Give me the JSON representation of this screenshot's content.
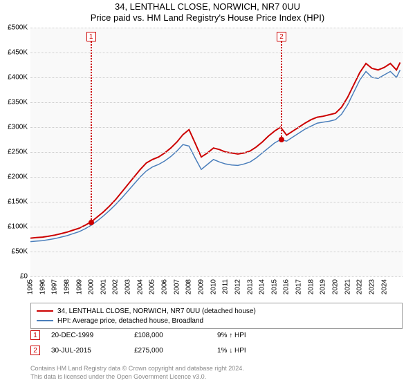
{
  "titles": {
    "main": "34, LENTHALL CLOSE, NORWICH, NR7 0UU",
    "sub": "Price paid vs. HM Land Registry's House Price Index (HPI)"
  },
  "chart": {
    "type": "line",
    "background_color": "#f9f9f9",
    "grid_color": "#cccccc",
    "ylim": [
      0,
      500000
    ],
    "ytick_step": 50000,
    "y_tick_labels": [
      "£0",
      "£50K",
      "£100K",
      "£150K",
      "£200K",
      "£250K",
      "£300K",
      "£350K",
      "£400K",
      "£450K",
      "£500K"
    ],
    "x_years": [
      1995,
      1996,
      1997,
      1998,
      1999,
      2000,
      2001,
      2002,
      2003,
      2004,
      2005,
      2006,
      2007,
      2008,
      2009,
      2010,
      2011,
      2012,
      2013,
      2014,
      2015,
      2016,
      2017,
      2018,
      2019,
      2020,
      2021,
      2022,
      2023,
      2024
    ],
    "series": [
      {
        "name": "34, LENTHALL CLOSE, NORWICH, NR7 0UU (detached house)",
        "color": "#cc0000",
        "line_width": 2,
        "points": [
          [
            1995.0,
            77000
          ],
          [
            1995.5,
            78000
          ],
          [
            1996.0,
            79000
          ],
          [
            1996.5,
            81000
          ],
          [
            1997.0,
            83000
          ],
          [
            1997.5,
            86000
          ],
          [
            1998.0,
            89000
          ],
          [
            1998.5,
            93000
          ],
          [
            1999.0,
            97000
          ],
          [
            1999.5,
            103000
          ],
          [
            2000.0,
            110000
          ],
          [
            2000.5,
            120000
          ],
          [
            2001.0,
            130000
          ],
          [
            2001.5,
            142000
          ],
          [
            2002.0,
            155000
          ],
          [
            2002.5,
            170000
          ],
          [
            2003.0,
            185000
          ],
          [
            2003.5,
            200000
          ],
          [
            2004.0,
            215000
          ],
          [
            2004.5,
            228000
          ],
          [
            2005.0,
            235000
          ],
          [
            2005.5,
            240000
          ],
          [
            2006.0,
            248000
          ],
          [
            2006.5,
            258000
          ],
          [
            2007.0,
            270000
          ],
          [
            2007.5,
            285000
          ],
          [
            2008.0,
            295000
          ],
          [
            2008.5,
            268000
          ],
          [
            2009.0,
            240000
          ],
          [
            2009.5,
            248000
          ],
          [
            2010.0,
            258000
          ],
          [
            2010.5,
            255000
          ],
          [
            2011.0,
            250000
          ],
          [
            2011.5,
            248000
          ],
          [
            2012.0,
            246000
          ],
          [
            2012.5,
            248000
          ],
          [
            2013.0,
            252000
          ],
          [
            2013.5,
            260000
          ],
          [
            2014.0,
            270000
          ],
          [
            2014.5,
            282000
          ],
          [
            2015.0,
            292000
          ],
          [
            2015.5,
            300000
          ],
          [
            2016.0,
            284000
          ],
          [
            2016.5,
            292000
          ],
          [
            2017.0,
            300000
          ],
          [
            2017.5,
            308000
          ],
          [
            2018.0,
            315000
          ],
          [
            2018.5,
            320000
          ],
          [
            2019.0,
            322000
          ],
          [
            2019.5,
            325000
          ],
          [
            2020.0,
            328000
          ],
          [
            2020.5,
            340000
          ],
          [
            2021.0,
            360000
          ],
          [
            2021.5,
            385000
          ],
          [
            2022.0,
            410000
          ],
          [
            2022.5,
            428000
          ],
          [
            2023.0,
            418000
          ],
          [
            2023.5,
            415000
          ],
          [
            2024.0,
            420000
          ],
          [
            2024.5,
            428000
          ],
          [
            2025.0,
            415000
          ],
          [
            2025.3,
            430000
          ]
        ]
      },
      {
        "name": "HPI: Average price, detached house, Broadland",
        "color": "#4a7ebb",
        "line_width": 1.5,
        "points": [
          [
            1995.0,
            70000
          ],
          [
            1995.5,
            71000
          ],
          [
            1996.0,
            72000
          ],
          [
            1996.5,
            74000
          ],
          [
            1997.0,
            76000
          ],
          [
            1997.5,
            79000
          ],
          [
            1998.0,
            82000
          ],
          [
            1998.5,
            86000
          ],
          [
            1999.0,
            90000
          ],
          [
            1999.5,
            96000
          ],
          [
            2000.0,
            103000
          ],
          [
            2000.5,
            112000
          ],
          [
            2001.0,
            122000
          ],
          [
            2001.5,
            133000
          ],
          [
            2002.0,
            145000
          ],
          [
            2002.5,
            158000
          ],
          [
            2003.0,
            172000
          ],
          [
            2003.5,
            186000
          ],
          [
            2004.0,
            200000
          ],
          [
            2004.5,
            212000
          ],
          [
            2005.0,
            220000
          ],
          [
            2005.5,
            225000
          ],
          [
            2006.0,
            232000
          ],
          [
            2006.5,
            241000
          ],
          [
            2007.0,
            252000
          ],
          [
            2007.5,
            265000
          ],
          [
            2008.0,
            262000
          ],
          [
            2008.5,
            238000
          ],
          [
            2009.0,
            215000
          ],
          [
            2009.5,
            225000
          ],
          [
            2010.0,
            235000
          ],
          [
            2010.5,
            230000
          ],
          [
            2011.0,
            226000
          ],
          [
            2011.5,
            224000
          ],
          [
            2012.0,
            223000
          ],
          [
            2012.5,
            226000
          ],
          [
            2013.0,
            230000
          ],
          [
            2013.5,
            238000
          ],
          [
            2014.0,
            248000
          ],
          [
            2014.5,
            258000
          ],
          [
            2015.0,
            268000
          ],
          [
            2015.5,
            275000
          ],
          [
            2016.0,
            272000
          ],
          [
            2016.5,
            280000
          ],
          [
            2017.0,
            288000
          ],
          [
            2017.5,
            296000
          ],
          [
            2018.0,
            302000
          ],
          [
            2018.5,
            308000
          ],
          [
            2019.0,
            310000
          ],
          [
            2019.5,
            312000
          ],
          [
            2020.0,
            315000
          ],
          [
            2020.5,
            326000
          ],
          [
            2021.0,
            345000
          ],
          [
            2021.5,
            370000
          ],
          [
            2022.0,
            395000
          ],
          [
            2022.5,
            412000
          ],
          [
            2023.0,
            400000
          ],
          [
            2023.5,
            398000
          ],
          [
            2024.0,
            405000
          ],
          [
            2024.5,
            412000
          ],
          [
            2025.0,
            400000
          ],
          [
            2025.3,
            415000
          ]
        ]
      }
    ],
    "xlim": [
      1995,
      2025.5
    ],
    "sale_markers": [
      {
        "n": "1",
        "x_year": 1999.97,
        "y_value": 108000
      },
      {
        "n": "2",
        "x_year": 2015.58,
        "y_value": 275000
      }
    ]
  },
  "legend": {
    "border_color": "#999999",
    "items": [
      {
        "color": "#cc0000",
        "label": "34, LENTHALL CLOSE, NORWICH, NR7 0UU (detached house)"
      },
      {
        "color": "#4a7ebb",
        "label": "HPI: Average price, detached house, Broadland"
      }
    ]
  },
  "events": [
    {
      "n": "1",
      "date": "20-DEC-1999",
      "price": "£108,000",
      "hpi_pct": "9%",
      "hpi_dir": "↑",
      "hpi_suffix": "HPI"
    },
    {
      "n": "2",
      "date": "30-JUL-2015",
      "price": "£275,000",
      "hpi_pct": "1%",
      "hpi_dir": "↓",
      "hpi_suffix": "HPI"
    }
  ],
  "footer": {
    "line1": "Contains HM Land Registry data © Crown copyright and database right 2024.",
    "line2": "This data is licensed under the Open Government Licence v3.0."
  },
  "style": {
    "marker_border_color": "#cc0000",
    "text_color": "#000000",
    "footer_color": "#888888"
  }
}
